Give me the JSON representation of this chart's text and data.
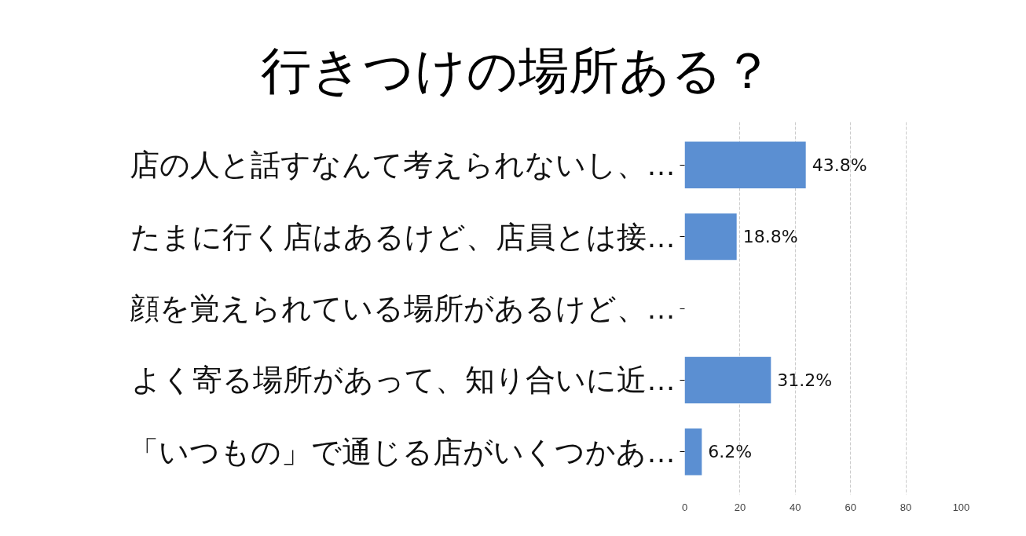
{
  "chart_data": {
    "type": "bar",
    "orientation": "horizontal",
    "title": "行きつけの場所ある？",
    "categories": [
      "店の人と話すなんて考えられないし、…",
      "たまに行く店はあるけど、店員とは接…",
      "顔を覚えられている場所があるけど、…",
      "よく寄る場所があって、知り合いに近…",
      "「いつもの」で通じる店がいくつかあ…"
    ],
    "values": [
      43.8,
      18.8,
      0,
      31.2,
      6.2
    ],
    "value_labels": [
      "43.8%",
      "18.8%",
      null,
      "31.2%",
      "6.2%"
    ],
    "color": "#5b8fd2",
    "xlim": [
      0,
      100
    ],
    "xticks": [
      0,
      20,
      40,
      60,
      80,
      100
    ],
    "grid": "x"
  }
}
